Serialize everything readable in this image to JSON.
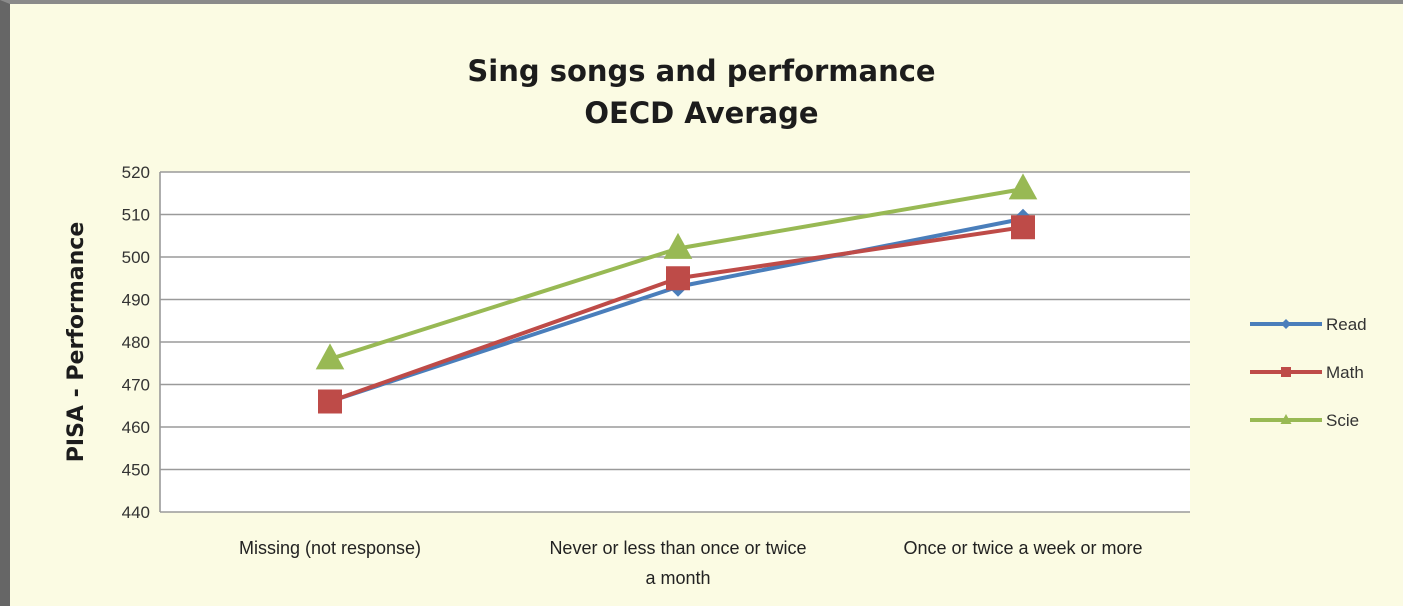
{
  "chart_data": {
    "type": "line",
    "title": [
      "Sing songs and performance",
      "OECD Average"
    ],
    "xlabel": "",
    "ylabel": "PISA - Performance",
    "categories": [
      [
        "Missing (not response)"
      ],
      [
        "Never or less than once or twice",
        "a month"
      ],
      [
        "Once or  twice a week or more"
      ]
    ],
    "ylim": [
      440,
      520
    ],
    "yticks": [
      440,
      450,
      460,
      470,
      480,
      490,
      500,
      510,
      520
    ],
    "grid": true,
    "legend_position": "right",
    "series": [
      {
        "name": "Read",
        "values": [
          466,
          493,
          509
        ],
        "color": "#4a7ebb",
        "marker": "diamond"
      },
      {
        "name": "Math",
        "values": [
          466,
          495,
          507
        ],
        "color": "#be4b48",
        "marker": "square"
      },
      {
        "name": "Scie",
        "values": [
          476,
          502,
          516
        ],
        "color": "#98b954",
        "marker": "triangle"
      }
    ]
  }
}
